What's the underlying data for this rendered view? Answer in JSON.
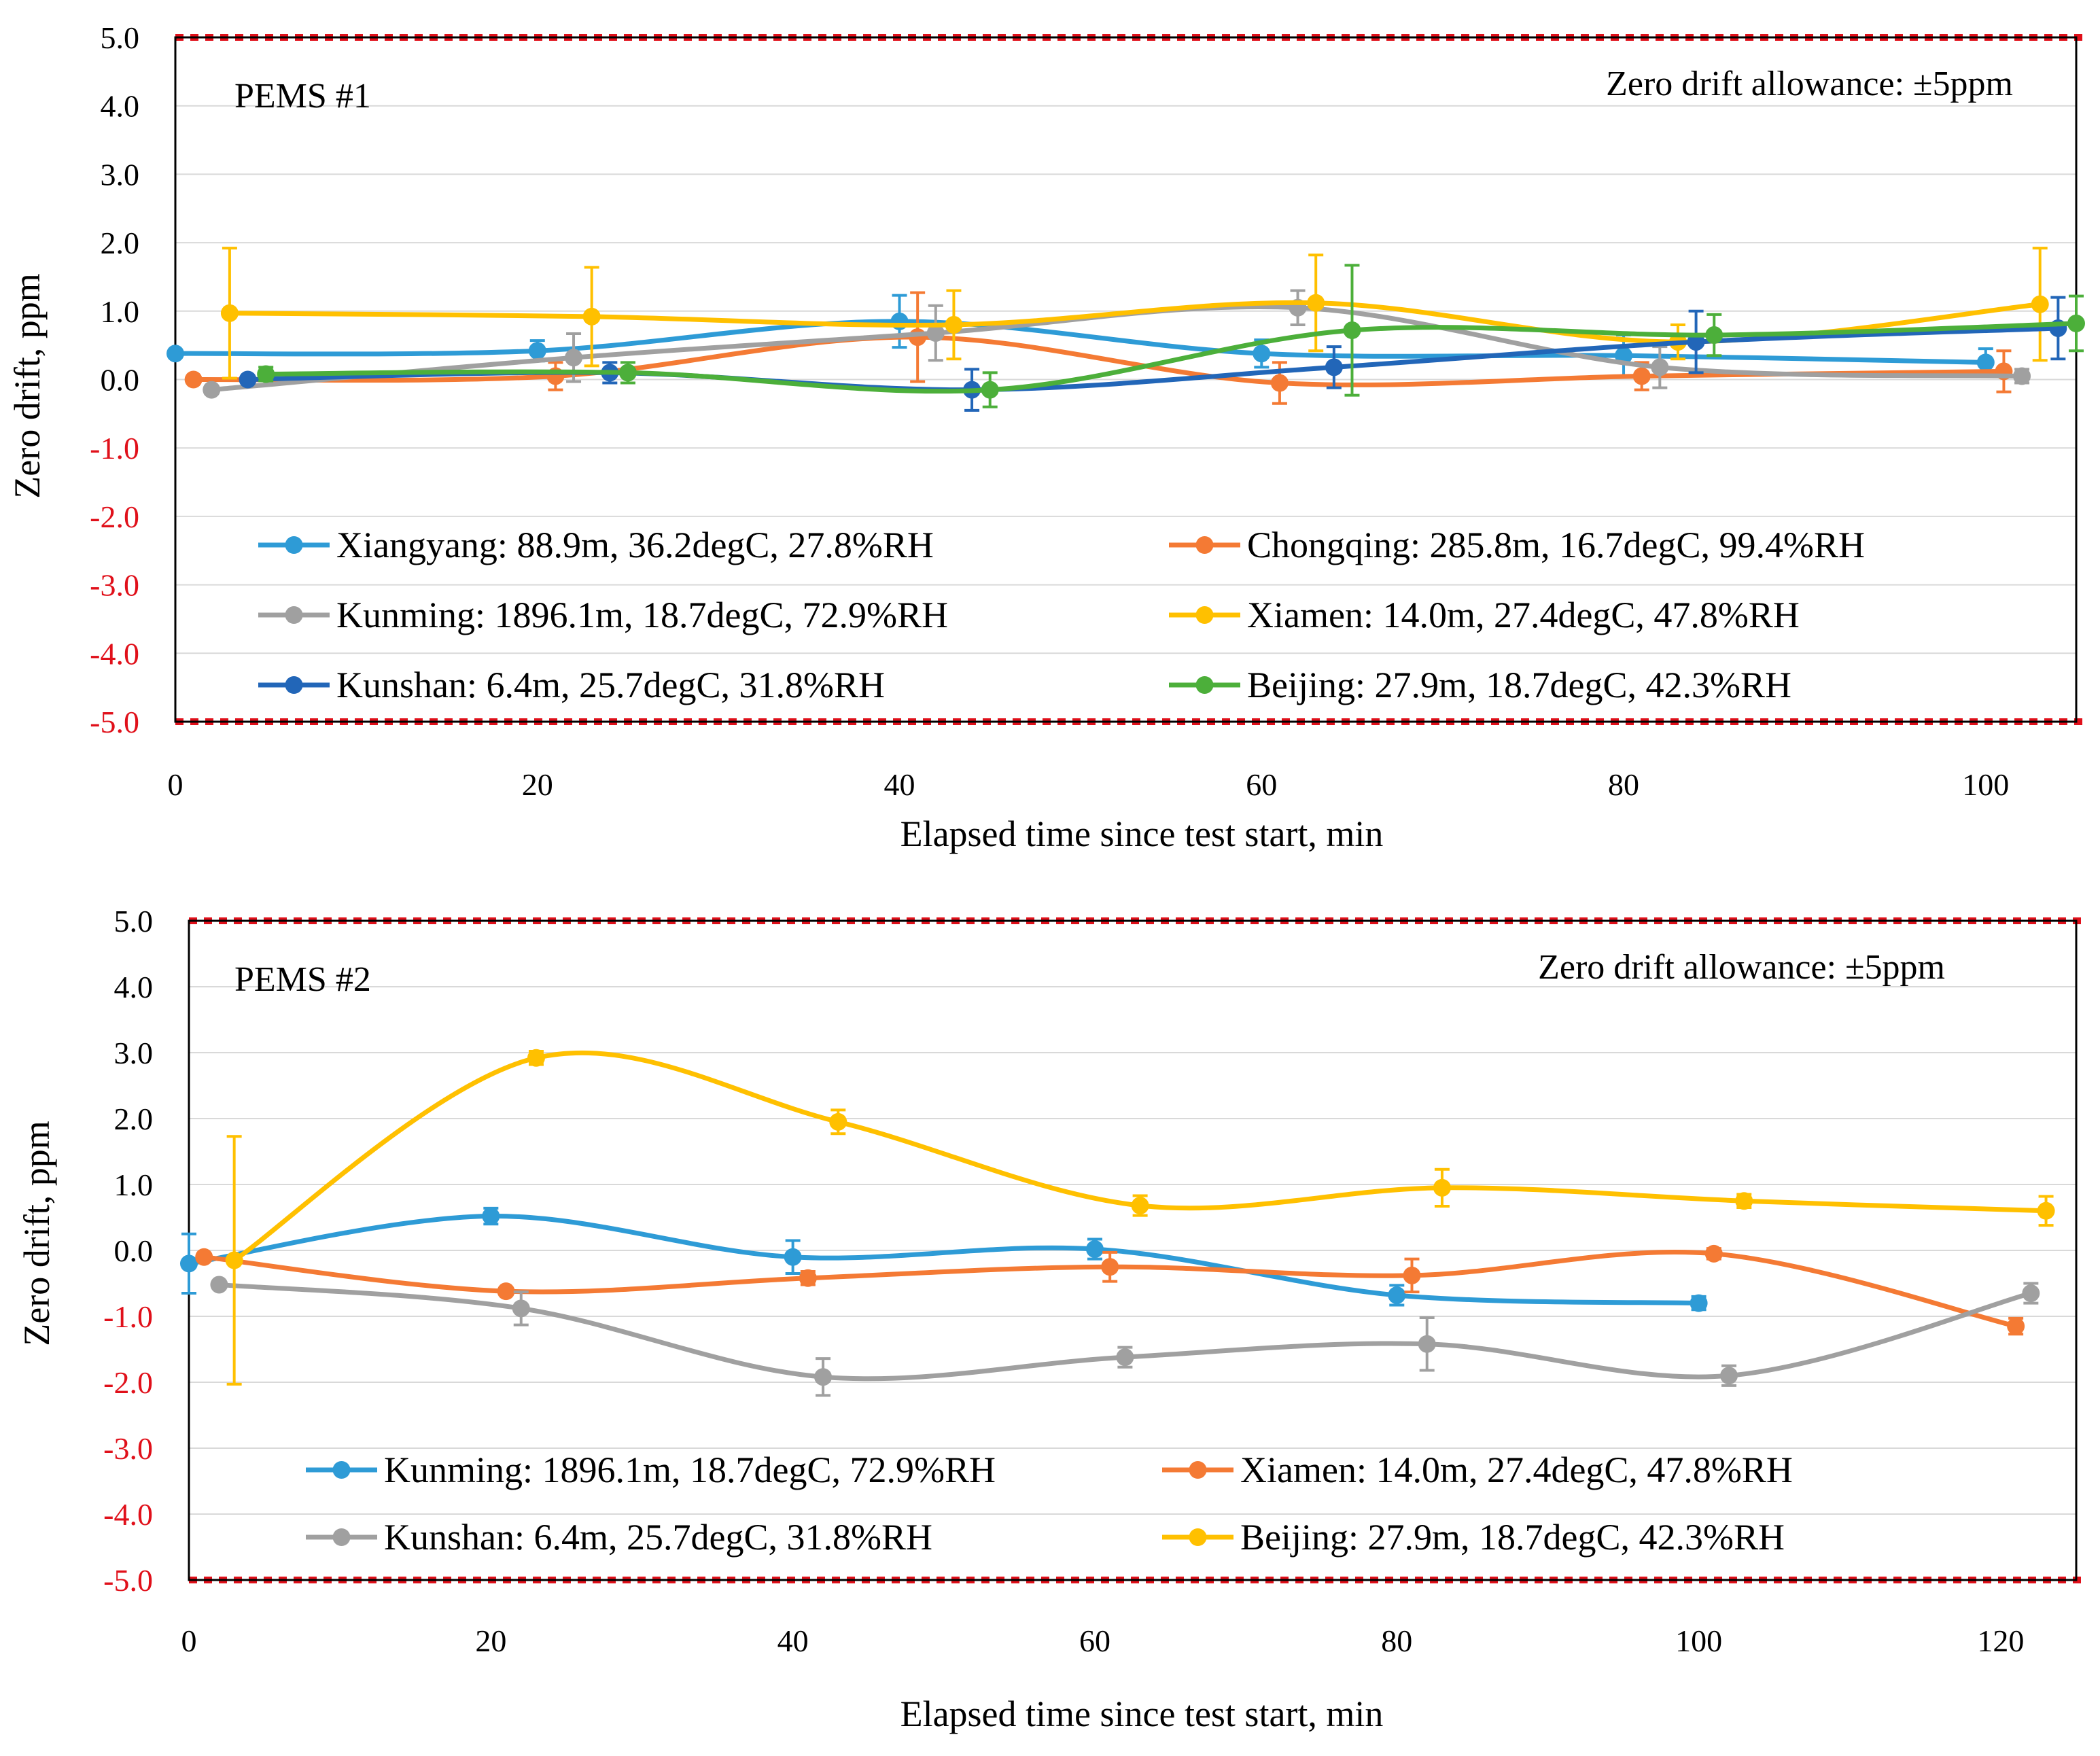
{
  "chart_data": [
    {
      "type": "line",
      "title": "PEMS #1",
      "annotation": "Zero drift allowance: ±5ppm",
      "xlabel": "Elapsed time since test start, min",
      "ylabel": "Zero drift, ppm",
      "xlim": [
        0,
        105
      ],
      "ylim": [
        -5,
        5
      ],
      "x_ticks": [
        "0",
        "20",
        "40",
        "60",
        "80",
        "100"
      ],
      "x_tick_values": [
        0,
        20,
        40,
        60,
        80,
        100
      ],
      "y_ticks": [
        "5.0",
        "4.0",
        "3.0",
        "2.0",
        "1.0",
        "0.0",
        "-1.0",
        "-2.0",
        "-3.0",
        "-4.0",
        "-5.0"
      ],
      "y_tick_values": [
        5,
        4,
        3,
        2,
        1,
        0,
        -1,
        -2,
        -3,
        -4,
        -5
      ],
      "allowance_lines": [
        5,
        -5
      ],
      "grid": "horizontal",
      "series": [
        {
          "name": "Xiangyang: 88.9m, 36.2degC, 27.8%RH",
          "color": "#2E9BD6",
          "x": [
            0,
            20,
            40,
            60,
            80,
            100
          ],
          "y": [
            0.38,
            0.42,
            0.85,
            0.38,
            0.35,
            0.25
          ],
          "err": [
            0.05,
            0.15,
            0.38,
            0.2,
            0.3,
            0.2
          ]
        },
        {
          "name": "Chongqing: 285.8m, 16.7degC, 99.4%RH",
          "color": "#F47A34",
          "x": [
            1,
            21,
            41,
            61,
            81,
            101
          ],
          "y": [
            0.0,
            0.05,
            0.62,
            -0.05,
            0.05,
            0.12
          ],
          "err": [
            0.0,
            0.2,
            0.65,
            0.3,
            0.2,
            0.3
          ]
        },
        {
          "name": "Kunming: 1896.1m, 18.7degC, 72.9%RH",
          "color": "#A0A0A0",
          "x": [
            2,
            22,
            42,
            62,
            82,
            102
          ],
          "y": [
            -0.15,
            0.32,
            0.68,
            1.05,
            0.18,
            0.05
          ],
          "err": [
            0.05,
            0.35,
            0.4,
            0.25,
            0.3,
            0.1
          ]
        },
        {
          "name": "Xiamen: 14.0m, 27.4degC, 47.8%RH",
          "color": "#FFC000",
          "x": [
            3,
            23,
            43,
            63,
            83,
            103
          ],
          "y": [
            0.97,
            0.92,
            0.8,
            1.12,
            0.55,
            1.1
          ],
          "err": [
            0.95,
            0.72,
            0.5,
            0.7,
            0.25,
            0.82
          ]
        },
        {
          "name": "Kunshan: 6.4m, 25.7degC, 31.8%RH",
          "color": "#2266B8",
          "x": [
            4,
            24,
            44,
            64,
            84,
            104
          ],
          "y": [
            0.0,
            0.1,
            -0.15,
            0.18,
            0.55,
            0.75
          ],
          "err": [
            0.05,
            0.15,
            0.3,
            0.3,
            0.45,
            0.45
          ]
        },
        {
          "name": "Beijing: 27.9m, 18.7degC, 42.3%RH",
          "color": "#4CAF3A",
          "x": [
            5,
            25,
            45,
            65,
            85,
            105
          ],
          "y": [
            0.08,
            0.1,
            -0.15,
            0.72,
            0.65,
            0.82
          ],
          "err": [
            0.1,
            0.15,
            0.25,
            0.95,
            0.3,
            0.4
          ]
        }
      ]
    },
    {
      "type": "line",
      "title": "PEMS #2",
      "annotation": "Zero drift allowance: ±5ppm",
      "xlabel": "Elapsed time since test start, min",
      "ylabel": "Zero drift, ppm",
      "xlim": [
        0,
        125
      ],
      "ylim": [
        -5,
        5
      ],
      "x_ticks": [
        "0",
        "20",
        "40",
        "60",
        "80",
        "100",
        "120"
      ],
      "x_tick_values": [
        0,
        20,
        40,
        60,
        80,
        100,
        120
      ],
      "y_ticks": [
        "5.0",
        "4.0",
        "3.0",
        "2.0",
        "1.0",
        "0.0",
        "-1.0",
        "-2.0",
        "-3.0",
        "-4.0",
        "-5.0"
      ],
      "y_tick_values": [
        5,
        4,
        3,
        2,
        1,
        0,
        -1,
        -2,
        -3,
        -4,
        -5
      ],
      "allowance_lines": [
        5,
        -5
      ],
      "grid": "horizontal",
      "series": [
        {
          "name": "Kunming: 1896.1m, 18.7degC, 72.9%RH",
          "color": "#2E9BD6",
          "x": [
            0,
            20,
            40,
            60,
            80,
            100
          ],
          "y": [
            -0.2,
            0.52,
            -0.1,
            0.02,
            -0.68,
            -0.8
          ],
          "err": [
            0.45,
            0.12,
            0.25,
            0.15,
            0.15,
            0.1
          ]
        },
        {
          "name": "Xiamen: 14.0m, 27.4degC, 47.8%RH",
          "color": "#F47A34",
          "x": [
            1,
            21,
            41,
            61,
            81,
            101,
            121
          ],
          "y": [
            -0.1,
            -0.62,
            -0.42,
            -0.25,
            -0.38,
            -0.05,
            -1.15
          ],
          "err": [
            0.05,
            0.05,
            0.1,
            0.22,
            0.25,
            0.08,
            0.12
          ]
        },
        {
          "name": "Kunshan: 6.4m, 25.7degC, 31.8%RH",
          "color": "#A0A0A0",
          "x": [
            2,
            22,
            42,
            62,
            82,
            102,
            122
          ],
          "y": [
            -0.52,
            -0.88,
            -1.92,
            -1.62,
            -1.42,
            -1.9,
            -0.65
          ],
          "err": [
            0.05,
            0.25,
            0.28,
            0.15,
            0.4,
            0.15,
            0.15
          ]
        },
        {
          "name": "Beijing: 27.9m, 18.7degC, 42.3%RH",
          "color": "#FFC000",
          "x": [
            3,
            23,
            43,
            63,
            83,
            103,
            123
          ],
          "y": [
            -0.15,
            2.92,
            1.95,
            0.68,
            0.95,
            0.75,
            0.6
          ],
          "err": [
            1.88,
            0.1,
            0.18,
            0.15,
            0.28,
            0.1,
            0.22
          ]
        }
      ]
    }
  ]
}
